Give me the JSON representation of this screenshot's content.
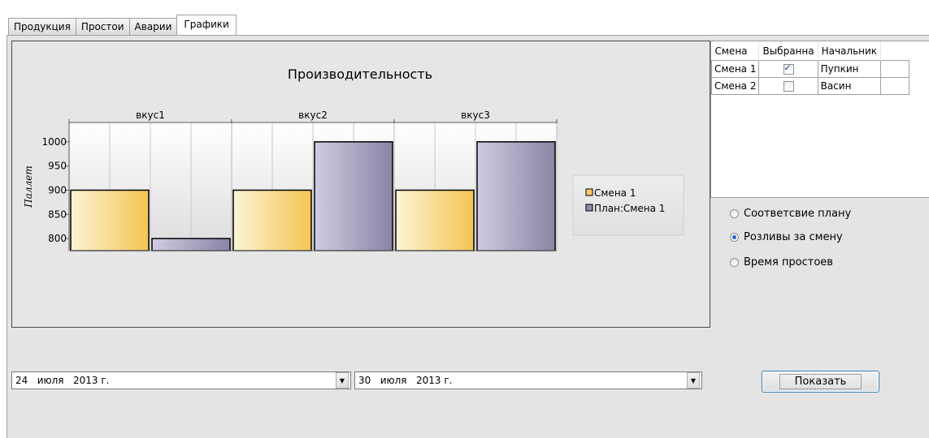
{
  "tabs": [
    {
      "label": "Продукция"
    },
    {
      "label": "Простои"
    },
    {
      "label": "Аварии"
    },
    {
      "label": "Графики",
      "active": true
    }
  ],
  "chart_data": {
    "type": "bar",
    "title": "Производительность",
    "ylabel": "Паллет",
    "categories": [
      "вкус1",
      "вкус2",
      "вкус3"
    ],
    "series": [
      {
        "name": "Смена 1",
        "values": [
          900,
          900,
          900
        ],
        "color": "#f6cd6a"
      },
      {
        "name": "План:Смена 1",
        "values": [
          800,
          1000,
          1000
        ],
        "color": "#8e88aa"
      }
    ],
    "yticks": [
      1000,
      950,
      900,
      850,
      800
    ],
    "ylim": [
      775,
      1040
    ],
    "grid": true,
    "legend_position": "right"
  },
  "shifts_grid": {
    "columns": [
      "Смена",
      "Выбранна",
      "Начальник"
    ],
    "rows": [
      {
        "shift": "Смена 1",
        "selected": true,
        "chief": "Пупкин"
      },
      {
        "shift": "Смена 2",
        "selected": false,
        "chief": "Васин"
      }
    ]
  },
  "radios": [
    {
      "label": "Соответсвие плану",
      "checked": false
    },
    {
      "label": "Розливы за смену",
      "checked": true
    },
    {
      "label": "Время простоев",
      "checked": false
    }
  ],
  "date_from": {
    "day": "24",
    "month": "июля",
    "year": "2013 г."
  },
  "date_to": {
    "day": "30",
    "month": "июля",
    "year": "2013 г."
  },
  "show_button": "Показать"
}
